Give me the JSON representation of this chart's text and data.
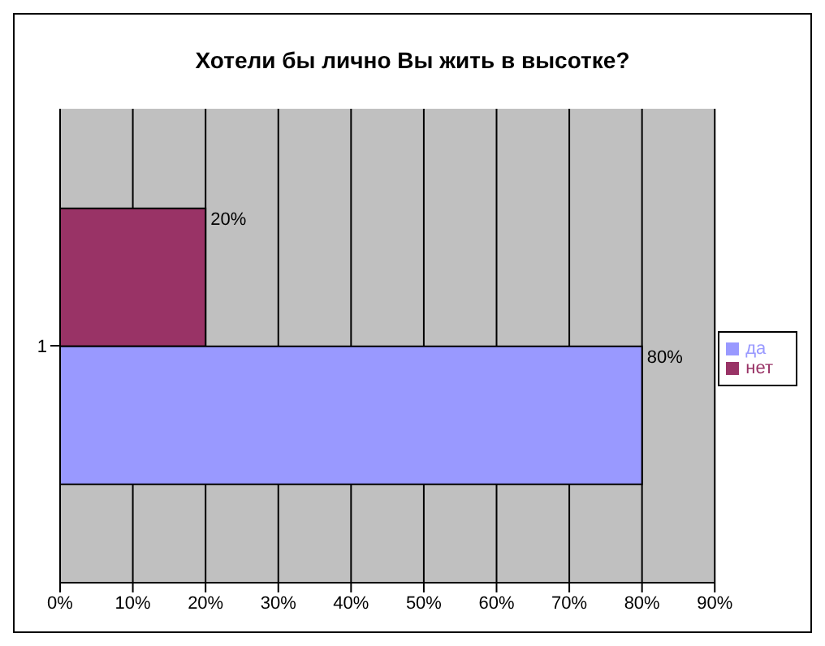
{
  "chart_data": {
    "type": "bar",
    "orientation": "horizontal",
    "title": "Хотели бы лично Вы жить в высотке?",
    "categories": [
      "1"
    ],
    "series": [
      {
        "name": "нет",
        "color": "#993366",
        "values": [
          20
        ],
        "value_labels": [
          "20%"
        ]
      },
      {
        "name": "да",
        "color": "#9999ff",
        "values": [
          80
        ],
        "value_labels": [
          "80%"
        ]
      }
    ],
    "xlim": [
      0,
      90
    ],
    "xticks": [
      {
        "value": 0,
        "label": "0%"
      },
      {
        "value": 10,
        "label": "10%"
      },
      {
        "value": 20,
        "label": "20%"
      },
      {
        "value": 30,
        "label": "30%"
      },
      {
        "value": 40,
        "label": "40%"
      },
      {
        "value": 50,
        "label": "50%"
      },
      {
        "value": 60,
        "label": "60%"
      },
      {
        "value": 70,
        "label": "70%"
      },
      {
        "value": 80,
        "label": "80%"
      },
      {
        "value": 90,
        "label": "90%"
      }
    ],
    "grid": "x",
    "legend": "right"
  }
}
